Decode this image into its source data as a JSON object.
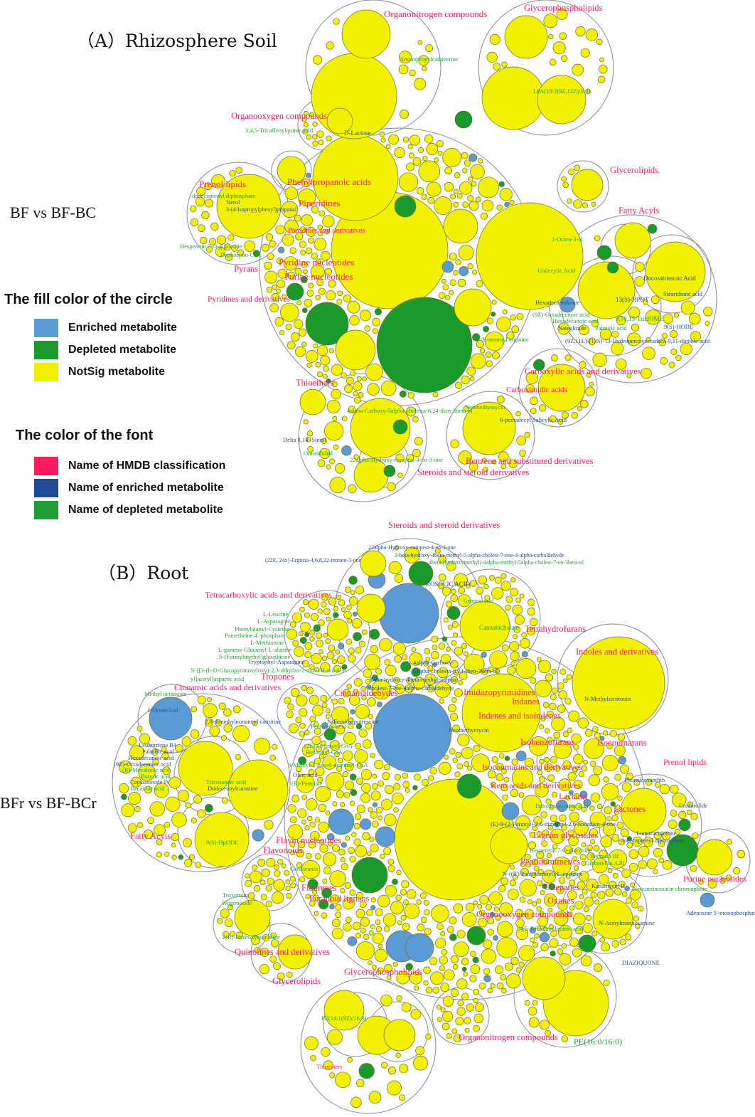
{
  "panel_a": {
    "title": "（A）Rhizosphere Soil",
    "comparison": "BF vs BF-BC",
    "labels": [
      {
        "text": "Organonitrogen compounds",
        "type": "hmdb"
      },
      {
        "text": "Glycerophospholipids",
        "type": "hmdb"
      },
      {
        "text": "Aminopropylcadaverine",
        "type": "depleted"
      },
      {
        "text": "LPA(18:2(9Z,12Z)/0:0)",
        "type": "depleted"
      },
      {
        "text": "Organooxygen compounds",
        "type": "hmdb"
      },
      {
        "text": "3,4,5-Tricaffeoylquinic acid",
        "type": "depleted"
      },
      {
        "text": "D-Lactose",
        "type": "enriched"
      },
      {
        "text": "Glycerolipids",
        "type": "hmdb"
      },
      {
        "text": "Prenol lipids",
        "type": "hmdb"
      },
      {
        "text": "Phenylpropanoic acids",
        "type": "hmdb"
      },
      {
        "text": "dodecaprenyl diphosphate",
        "type": "depleted"
      },
      {
        "text": "Nerol",
        "type": "enriched"
      },
      {
        "text": "3-(4-Isopropylphenyl)propanal",
        "type": "enriched"
      },
      {
        "text": "Piperidines",
        "type": "hmdb"
      },
      {
        "text": "Fatty Acyls",
        "type": "hmdb"
      },
      {
        "text": "Pteridines and derivatives",
        "type": "hmdb"
      },
      {
        "text": "Hesperetin 7-O-glucoside",
        "type": "depleted"
      },
      {
        "text": "Dephospho-CoA",
        "type": "depleted"
      },
      {
        "text": "1-Octen-3-ol",
        "type": "depleted"
      },
      {
        "text": "Pyridine nucleotides",
        "type": "hmdb"
      },
      {
        "text": "Pyrans",
        "type": "hmdb"
      },
      {
        "text": "Undecylic Acid",
        "type": "depleted"
      },
      {
        "text": "Purine nucleotides",
        "type": "hmdb"
      },
      {
        "text": "Docosatrienoic Acid",
        "type": "enriched"
      },
      {
        "text": "Pyridines and derivatives",
        "type": "hmdb"
      },
      {
        "text": "Hexadecanedioate",
        "type": "enriched"
      },
      {
        "text": "13(S)-HPOT",
        "type": "enriched"
      },
      {
        "text": "Stearidonic acid",
        "type": "enriched"
      },
      {
        "text": "(9Z)-Octadecenoic acid",
        "type": "depleted"
      },
      {
        "text": "Hexadecanoic acid",
        "type": "depleted"
      },
      {
        "text": "9,10,13-TriHOME",
        "type": "depleted"
      },
      {
        "text": "Palmitic acid",
        "type": "depleted"
      },
      {
        "text": "Nateglinide",
        "type": "enriched"
      },
      {
        "text": "9(S)-HODE",
        "type": "enriched"
      },
      {
        "text": "N-stearoyl arginine",
        "type": "depleted"
      },
      {
        "text": "(9Z,11E)-(13S)-13-Hydroperoxyoctadeca-9,11-dienoic acid",
        "type": "enriched"
      },
      {
        "text": "Carboxylic acids and derivatives",
        "type": "hmdb"
      },
      {
        "text": "Thioethers",
        "type": "hmdb"
      },
      {
        "text": "Carboximidic acids",
        "type": "hmdb"
      },
      {
        "text": "Neomethymycin",
        "type": "depleted"
      },
      {
        "text": "4alpha-Carboxy-5alpha-cholesta-8,24-dien-3beta-ol",
        "type": "depleted"
      },
      {
        "text": "6-pentadecyl Salicylic Acid",
        "type": "enriched"
      },
      {
        "text": "Delta 8,14 -Sterol",
        "type": "enriched"
      },
      {
        "text": "Obtusifoliol",
        "type": "depleted"
      },
      {
        "text": "22alpha-Hydroxy-campest-4-en-3-one",
        "type": "depleted"
      },
      {
        "text": "Benzene and substituted derivatives",
        "type": "hmdb"
      },
      {
        "text": "Steroids and steroid derivatives",
        "type": "hmdb"
      }
    ]
  },
  "legend": {
    "fill_title": "The fill color of the circle",
    "fill_items": [
      {
        "label": "Enriched metabolite",
        "color": "#5b9bd5"
      },
      {
        "label": "Depleted metabolite",
        "color": "#1b9a2c"
      },
      {
        "label": "NotSig metabolite",
        "color": "#f2f200"
      }
    ],
    "font_title": "The color of the font",
    "font_items": [
      {
        "label": "Name of HMDB classification",
        "color": "#ff1a5c"
      },
      {
        "label": "Name of enriched metabolite",
        "color": "#1f4a9a"
      },
      {
        "label": "Name of depleted metabolite",
        "color": "#1f9e35"
      }
    ]
  },
  "panel_b": {
    "title": "（B）Root",
    "comparison": "BFr vs BF-BCr",
    "labels": [
      {
        "text": "Steroids and steroid derivatives",
        "type": "hmdb"
      },
      {
        "text": "22alpha-Hydroxy-campest-4-en-3-one",
        "type": "enriched"
      },
      {
        "text": "(22E, 24x)-Ergosta-4,6,8,22-tetraen-3-one",
        "type": "enriched"
      },
      {
        "text": "3-beta-hydroxy-4beta-methyl-5-alpha-cholest-7-ene-4-alpha-carbaldehyde",
        "type": "enriched"
      },
      {
        "text": "4beta-(hydroxymethyl)-4alpha-methyl-5alpha-cholest-7-en-3beta-ol",
        "type": "depleted"
      },
      {
        "text": "ROSOLIC ACID",
        "type": "enriched"
      },
      {
        "text": "Tetracarboxylic acids and derivatives",
        "type": "hmdb"
      },
      {
        "text": "Gentisic acid",
        "type": "depleted"
      },
      {
        "text": "Cannabicholate",
        "type": "depleted"
      },
      {
        "text": "Tetrahydrofurans",
        "type": "hmdb"
      },
      {
        "text": "L-Leucine",
        "type": "depleted"
      },
      {
        "text": "L-Asparagine",
        "type": "depleted"
      },
      {
        "text": "Phenylalanyl-Cysteine",
        "type": "depleted"
      },
      {
        "text": "Pantetheine 4'-phosphate",
        "type": "depleted"
      },
      {
        "text": "L-Methionine",
        "type": "depleted"
      },
      {
        "text": "L-gamma-Glutamyl-L-alanine",
        "type": "depleted"
      },
      {
        "text": "S-(Formylmethyl)glutathione",
        "type": "depleted"
      },
      {
        "text": "Tryptophyl-Asparagine",
        "type": "enriched"
      },
      {
        "text": "N-[[3-(b-D-Glucopyranosyloxy)-2,3-dihydro-2-oxo-1H-indol-3-",
        "type": "depleted"
      },
      {
        "text": "yl]acetyl]aspartic acid",
        "type": "depleted"
      },
      {
        "text": "Tropones",
        "type": "hmdb"
      },
      {
        "text": "Cinnamic acids and derivatives",
        "type": "hmdb"
      },
      {
        "text": "Cinnamaldehydes",
        "type": "hmdb"
      },
      {
        "text": "4alpha-Carboxy-",
        "type": "enriched"
      },
      {
        "text": "5alpha-cholesta-8,24-dien-3beta-ol",
        "type": "enriched"
      },
      {
        "text": "3beta-hydroxy-4beta-methyl-5alpha-",
        "type": "enriched"
      },
      {
        "text": "cholest-7-ene-4alpha-carbaldehyde",
        "type": "enriched"
      },
      {
        "text": "Indoles and derivatives",
        "type": "hmdb"
      },
      {
        "text": "Imidazopyrimidines",
        "type": "hmdb"
      },
      {
        "text": "N-Methylserotonin",
        "type": "enriched"
      },
      {
        "text": "Indanes",
        "type": "hmdb"
      },
      {
        "text": "Indenes and isoindenes",
        "type": "hmdb"
      },
      {
        "text": "Neomethymycin",
        "type": "enriched"
      },
      {
        "text": "Methyl octanoate",
        "type": "depleted"
      },
      {
        "text": "1-Octen-3-ol",
        "type": "enriched"
      },
      {
        "text": "2,8-dimethylnonanoyl carnitine",
        "type": "enriched"
      },
      {
        "text": "N-Feruloylputrescine",
        "type": "enriched"
      },
      {
        "text": "Pentanoic acid",
        "type": "depleted"
      },
      {
        "text": "Isobenzofurans",
        "type": "hmdb"
      },
      {
        "text": "Isocoumarans",
        "type": "hmdb"
      },
      {
        "text": "Prenol lipids",
        "type": "hmdb"
      },
      {
        "text": "Leukotriene B4",
        "type": "enriched"
      },
      {
        "text": "Palmitic acid",
        "type": "enriched"
      },
      {
        "text": "Hexadecanoic acid",
        "type": "enriched"
      },
      {
        "text": "(9Z)-Octadecenoic acid",
        "type": "enriched"
      },
      {
        "text": "(R)-Mevalonic acid",
        "type": "depleted"
      },
      {
        "text": "Butyric acid",
        "type": "depleted"
      },
      {
        "text": "Capsianoside IV",
        "type": "enriched"
      },
      {
        "text": "Decanoic acid",
        "type": "depleted"
      },
      {
        "text": "(2E)-Octenoyl-CoA",
        "type": "depleted"
      },
      {
        "text": "Hexanoyl-CoA",
        "type": "depleted"
      },
      {
        "text": "3-Methyl-2-oxo-6-octenoyl-CoA",
        "type": "depleted"
      },
      {
        "text": "Oleic acid",
        "type": "enriched"
      },
      {
        "text": "(R)-Pantoate",
        "type": "depleted"
      },
      {
        "text": "Tricosanoic acid",
        "type": "depleted"
      },
      {
        "text": "Dodecenoylcarnitine",
        "type": "enriched"
      },
      {
        "text": "Isocoumarins and derivatives",
        "type": "hmdb"
      },
      {
        "text": "Phoenicoxanthin",
        "type": "enriched"
      },
      {
        "text": "Keto acids and derivatives",
        "type": "hmdb"
      },
      {
        "text": "Lactams",
        "type": "hmdb"
      },
      {
        "text": "Dehydroascorbic acid",
        "type": "depleted"
      },
      {
        "text": "Lactones",
        "type": "hmdb"
      },
      {
        "text": "Cnidarolide",
        "type": "enriched"
      },
      {
        "text": "(E)-9-(2-Furanyl)-2,6-dimethyl-2,6-nonadien-4-one",
        "type": "enriched"
      },
      {
        "text": "Flavin nucleotides",
        "type": "hmdb"
      },
      {
        "text": "Lignan glycosides",
        "type": "hmdb"
      },
      {
        "text": "Fatty Acyls",
        "type": "hmdb"
      },
      {
        "text": "9(S)-HpODE",
        "type": "depleted"
      },
      {
        "text": "Flavonoids",
        "type": "hmdb"
      },
      {
        "text": "Lumarocolerone",
        "type": "enriched"
      },
      {
        "text": "dodecaprenyl diphosphate",
        "type": "enriched"
      },
      {
        "text": "Hesperetin 7-O-glucoside",
        "type": "depleted"
      },
      {
        "text": "Peptidomimetics",
        "type": "hmdb"
      },
      {
        "text": "Baccatin III",
        "type": "depleted"
      },
      {
        "text": "Gibberellin A20",
        "type": "depleted"
      },
      {
        "text": "Genkwanin",
        "type": "depleted"
      },
      {
        "text": "N-((R)-Pantothenoyl)-L-cysteine",
        "type": "enriched"
      },
      {
        "text": "Fluorenes",
        "type": "hmdb"
      },
      {
        "text": "Purine nucleotides",
        "type": "hmdb"
      },
      {
        "text": "Oxepanes",
        "type": "hmdb"
      },
      {
        "text": "Kanamycin B",
        "type": "enriched"
      },
      {
        "text": "Neocarzinostatin chromophore",
        "type": "depleted"
      },
      {
        "text": "Furanoid lignans",
        "type": "hmdb"
      },
      {
        "text": "Troxerutin",
        "type": "depleted"
      },
      {
        "text": "Wogonoside",
        "type": "depleted"
      },
      {
        "text": "Oxanes",
        "type": "hmdb"
      },
      {
        "text": "Adenosine 5'-monophosphate",
        "type": "enriched"
      },
      {
        "text": "Organooxygen compounds",
        "type": "hmdb"
      },
      {
        "text": "N-Acetylmannosamine",
        "type": "enriched"
      },
      {
        "text": "3,4,5-Tricaffeoylquinic acid",
        "type": "depleted"
      },
      {
        "text": "2(R)-Hydroxyquinoline",
        "type": "depleted"
      },
      {
        "text": "Quinolines and derivatives",
        "type": "hmdb"
      },
      {
        "text": "DIAZIQUONE",
        "type": "enriched"
      },
      {
        "text": "Glycerophospholipids",
        "type": "hmdb"
      },
      {
        "text": "Glycerolipids",
        "type": "hmdb"
      },
      {
        "text": "PE(14:1(9Z)/16:0)",
        "type": "depleted"
      },
      {
        "text": "Thioethers",
        "type": "hmdb"
      },
      {
        "text": "Organonitrogen compounds",
        "type": "hmdb"
      },
      {
        "text": "PE(16:0/16:0)",
        "type": "depleted"
      }
    ]
  },
  "colors": {
    "notsig": "#f2f200",
    "depleted": "#1b9a2c",
    "enriched": "#5b9bd5",
    "hmdb_font": "#ff1a5c",
    "enriched_font": "#1f4a9a",
    "depleted_font": "#1f9e35",
    "outline": "#777777"
  }
}
